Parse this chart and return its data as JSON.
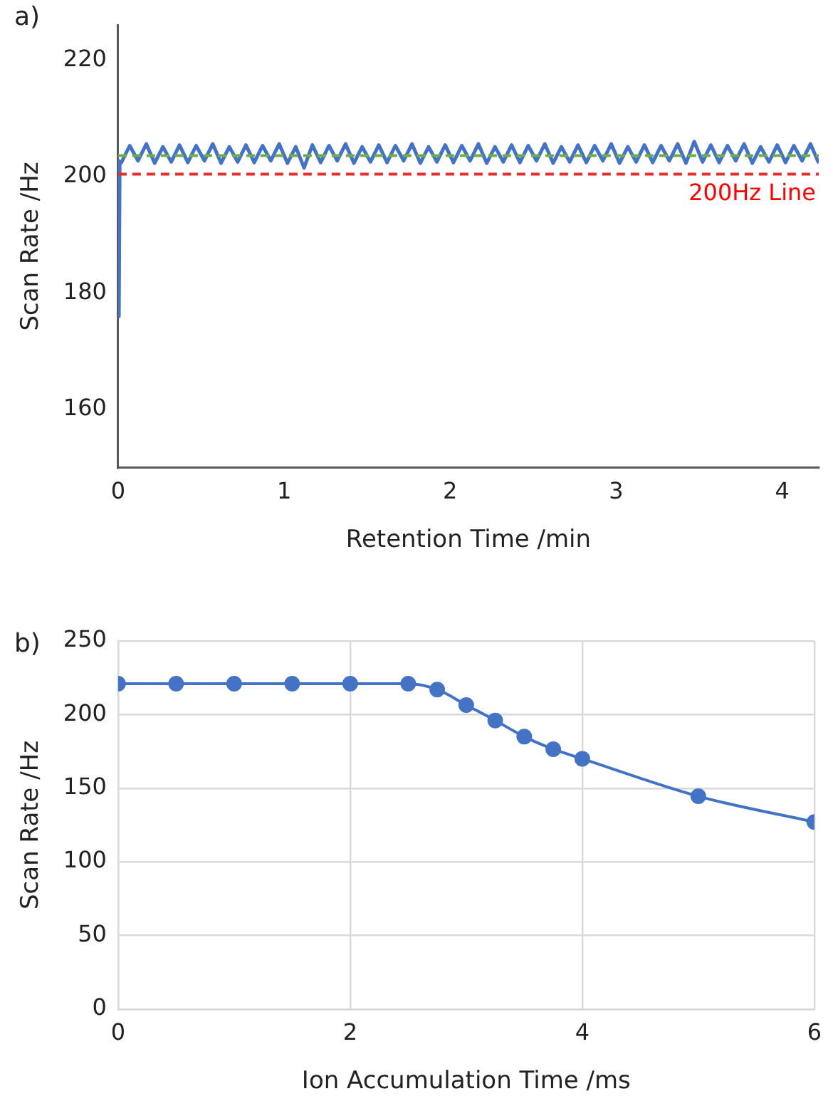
{
  "chart_data": [
    {
      "type": "line",
      "title": "a)",
      "xlabel": "Retention Time /min",
      "ylabel": "Scan Rate /Hz",
      "xlim": [
        0,
        4.22
      ],
      "xticks": [
        0,
        1,
        2,
        3,
        4
      ],
      "ylim": [
        150,
        226
      ],
      "yticks": [
        160,
        180,
        200,
        220
      ],
      "grid": false,
      "marker": "none",
      "ref_lines": [
        {
          "axis": "y",
          "value": 203.6,
          "label": null,
          "color": "#70ad47",
          "line_style": "dashed"
        },
        {
          "axis": "y",
          "value": 200.4,
          "label": "200Hz Line",
          "color": "#e03030",
          "line_style": "dashed"
        }
      ],
      "series": [
        {
          "color": "#4472c4",
          "x": [
            0,
            0.005,
            0.01,
            0.02,
            0.07,
            0.12,
            0.17,
            0.22,
            0.27,
            0.32,
            0.37,
            0.42,
            0.47,
            0.52,
            0.57,
            0.62,
            0.67,
            0.72,
            0.77,
            0.82,
            0.87,
            0.92,
            0.97,
            1.02,
            1.07,
            1.12,
            1.17,
            1.22,
            1.27,
            1.32,
            1.37,
            1.42,
            1.47,
            1.52,
            1.57,
            1.62,
            1.67,
            1.72,
            1.77,
            1.82,
            1.87,
            1.92,
            1.97,
            2.02,
            2.07,
            2.12,
            2.17,
            2.22,
            2.27,
            2.32,
            2.37,
            2.42,
            2.47,
            2.52,
            2.57,
            2.62,
            2.67,
            2.72,
            2.77,
            2.82,
            2.87,
            2.92,
            2.97,
            3.02,
            3.07,
            3.12,
            3.17,
            3.22,
            3.27,
            3.32,
            3.37,
            3.42,
            3.47,
            3.52,
            3.57,
            3.62,
            3.67,
            3.72,
            3.77,
            3.82,
            3.87,
            3.92,
            3.97,
            4.02,
            4.07,
            4.12,
            4.17,
            4.22
          ],
          "values": [
            203,
            176,
            202.5,
            202.4,
            205.3,
            202.7,
            205.6,
            202.3,
            205.1,
            202.5,
            205.4,
            202.4,
            205.3,
            202.7,
            205.6,
            202.3,
            205.1,
            202.5,
            205.4,
            202.4,
            205.3,
            202.7,
            205.6,
            202.3,
            205.1,
            201.5,
            205.4,
            202.4,
            205.3,
            202.7,
            205.6,
            202.3,
            205.1,
            202.5,
            205.4,
            202.4,
            205.3,
            202.7,
            205.6,
            202.3,
            205.1,
            202.5,
            205.4,
            202.4,
            205.3,
            202.7,
            205.6,
            202.3,
            205.1,
            202.5,
            205.4,
            202.4,
            205.3,
            202.7,
            205.6,
            202.3,
            205.1,
            202.5,
            205.4,
            202.4,
            205.3,
            202.7,
            205.6,
            202.3,
            205.1,
            202.5,
            205.4,
            202.4,
            205.3,
            202.7,
            205.6,
            202.3,
            206.0,
            202.5,
            205.4,
            202.4,
            205.3,
            202.7,
            205.6,
            202.3,
            205.1,
            202.5,
            205.4,
            202.4,
            205.3,
            202.7,
            205.6,
            202.3
          ]
        }
      ]
    },
    {
      "type": "line",
      "title": "b)",
      "xlabel": "Ion Accumulation Time /ms",
      "ylabel": "Scan Rate /Hz",
      "xlim": [
        0,
        6
      ],
      "xticks": [
        0,
        2,
        4,
        6
      ],
      "ylim": [
        0,
        250
      ],
      "yticks": [
        0,
        50,
        100,
        150,
        200,
        250
      ],
      "grid": true,
      "marker": "circle",
      "series": [
        {
          "color": "#4472c4",
          "x": [
            0,
            0.5,
            1,
            1.5,
            2,
            2.5,
            2.75,
            3,
            3.25,
            3.5,
            3.75,
            4,
            5,
            6
          ],
          "values": [
            221,
            221,
            221,
            221,
            221,
            221,
            217,
            206.5,
            196,
            185,
            176.5,
            170,
            144.5,
            127
          ]
        }
      ]
    }
  ]
}
